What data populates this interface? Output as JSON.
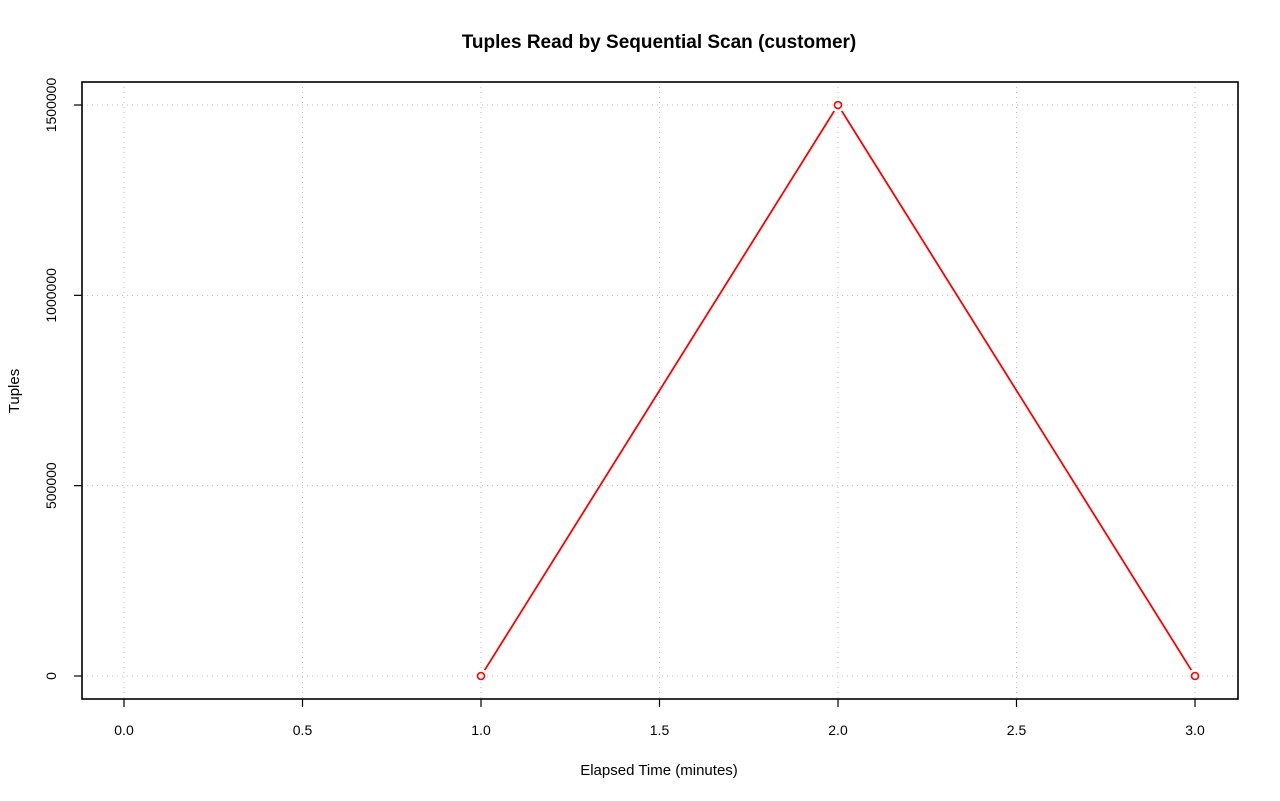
{
  "chart_data": {
    "type": "line",
    "title": "Tuples Read by Sequential Scan (customer)",
    "xlabel": "Elapsed Time (minutes)",
    "ylabel": "Tuples",
    "xlim": [
      0,
      3
    ],
    "ylim": [
      0,
      1500000
    ],
    "xticks": [
      0.0,
      0.5,
      1.0,
      1.5,
      2.0,
      2.5,
      3.0
    ],
    "xtick_labels": [
      "0.0",
      "0.5",
      "1.0",
      "1.5",
      "2.0",
      "2.5",
      "3.0"
    ],
    "yticks": [
      0,
      500000,
      1000000,
      1500000
    ],
    "ytick_labels": [
      "0",
      "500000",
      "1000000",
      "1500000"
    ],
    "grid": true,
    "series": [
      {
        "color": "#ff0000",
        "marker": "open-circle",
        "x": [
          1,
          2,
          3
        ],
        "y": [
          0,
          1500000,
          0
        ]
      }
    ]
  }
}
